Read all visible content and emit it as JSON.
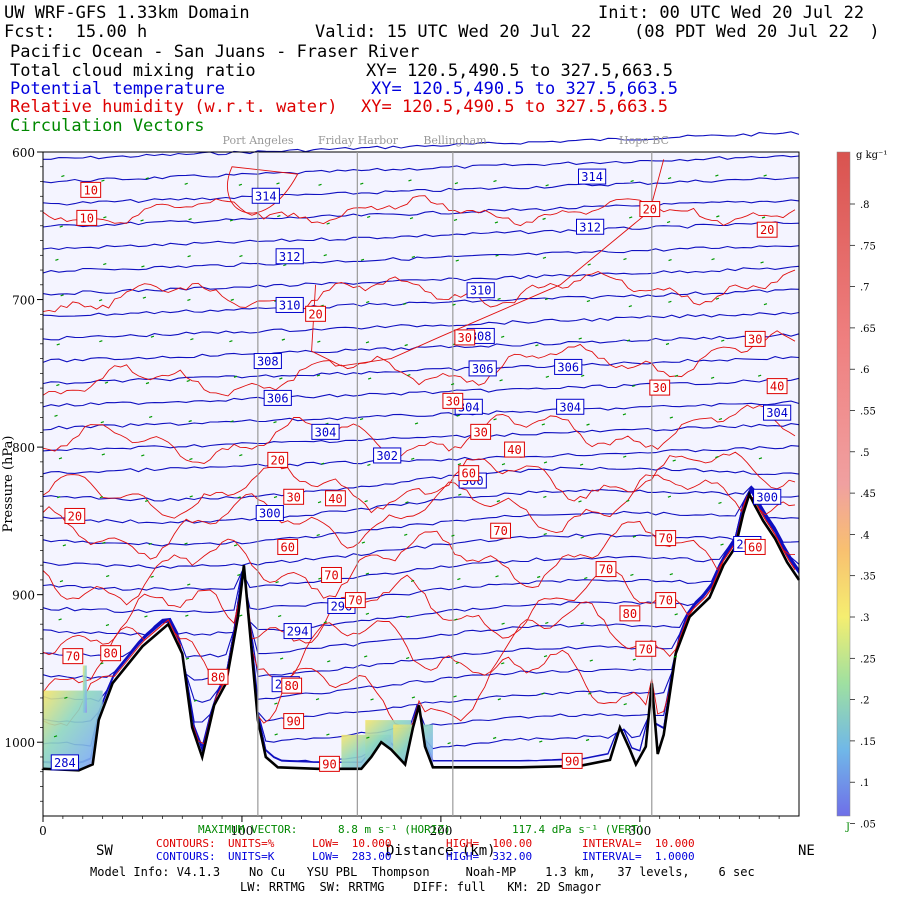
{
  "header": {
    "domain_title": "UW WRF-GFS 1.33km Domain",
    "init": "Init: 00 UTC Wed 20 Jul 22",
    "fcst": "Fcst:  15.00 h",
    "valid": "Valid: 15 UTC Wed 20 Jul 22",
    "valid_local": "(08 PDT Wed 20 Jul 22  )",
    "region": "Pacific Ocean - San Juans - Fraser River",
    "field1": "Total cloud mixing ratio",
    "field2": "Potential temperature",
    "field3": "Relative humidity (w.r.t. water)",
    "field4": "Circulation Vectors",
    "xy1": "XY= 120.5,490.5 to 327.5,663.5",
    "xy2": "XY= 120.5,490.5 to 327.5,663.5",
    "xy3": "XY= 120.5,490.5 to 327.5,663.5",
    "places": [
      "Port Angeles",
      "Friday Harbor",
      "Bellingham",
      "Hope BC"
    ],
    "field_colors": {
      "cloud": "#000000",
      "theta": "#0000dd",
      "rh": "#dd0000",
      "vectors": "#008800"
    }
  },
  "colorbar": {
    "unit": "g kg⁻¹",
    "ticks": [
      ".8",
      ".75",
      ".7",
      ".65",
      ".6",
      ".55",
      ".5",
      ".45",
      ".4",
      ".35",
      ".3",
      ".25",
      ".2",
      ".15",
      ".1",
      ".05"
    ],
    "bottom_label": "J"
  },
  "chart_data": {
    "type": "cross-section",
    "xlabel": "Distance (km)",
    "ylabel": "Pressure (hPa)",
    "xlim": [
      0,
      380
    ],
    "ylim": [
      1050,
      600
    ],
    "x_ticks": [
      "0",
      "100",
      "200",
      "300"
    ],
    "x_tick_values": [
      0,
      100,
      200,
      300
    ],
    "y_ticks": [
      "600",
      "700",
      "800",
      "900",
      "1000"
    ],
    "y_tick_values": [
      600,
      700,
      800,
      900,
      1000
    ],
    "end_labels": {
      "left": "SW",
      "right": "NE"
    },
    "vertical_lines_km": [
      108,
      158,
      206,
      306
    ],
    "theta_contours": {
      "units": "K",
      "low": 283,
      "high": 332,
      "interval": 1,
      "labels": [
        {
          "value": "314",
          "x": 112,
          "p": 630
        },
        {
          "value": "314",
          "x": 276,
          "p": 617
        },
        {
          "value": "312",
          "x": 124,
          "p": 671
        },
        {
          "value": "312",
          "x": 275,
          "p": 651
        },
        {
          "value": "310",
          "x": 124,
          "p": 704
        },
        {
          "value": "310",
          "x": 220,
          "p": 694
        },
        {
          "value": "308",
          "x": 113,
          "p": 742
        },
        {
          "value": "308",
          "x": 220,
          "p": 725
        },
        {
          "value": "306",
          "x": 118,
          "p": 767
        },
        {
          "value": "306",
          "x": 221,
          "p": 747
        },
        {
          "value": "306",
          "x": 264,
          "p": 746
        },
        {
          "value": "304",
          "x": 142,
          "p": 790
        },
        {
          "value": "304",
          "x": 214,
          "p": 773
        },
        {
          "value": "304",
          "x": 265,
          "p": 773
        },
        {
          "value": "304",
          "x": 369,
          "p": 777
        },
        {
          "value": "302",
          "x": 173,
          "p": 806
        },
        {
          "value": "300",
          "x": 114,
          "p": 845
        },
        {
          "value": "300",
          "x": 216,
          "p": 823
        },
        {
          "value": "300",
          "x": 364,
          "p": 834
        },
        {
          "value": "298",
          "x": 354,
          "p": 866
        },
        {
          "value": "296",
          "x": 150,
          "p": 908
        },
        {
          "value": "294",
          "x": 128,
          "p": 925
        },
        {
          "value": "290",
          "x": 122,
          "p": 961
        },
        {
          "value": "284",
          "x": 11,
          "p": 1014
        }
      ]
    },
    "rh_contours": {
      "units": "%",
      "low": 10,
      "high": 100,
      "interval": 10,
      "labels": [
        {
          "value": "10",
          "x": 24,
          "p": 626
        },
        {
          "value": "10",
          "x": 22,
          "p": 645
        },
        {
          "value": "20",
          "x": 305,
          "p": 639
        },
        {
          "value": "20",
          "x": 364,
          "p": 653
        },
        {
          "value": "20",
          "x": 137,
          "p": 710
        },
        {
          "value": "30",
          "x": 212,
          "p": 726
        },
        {
          "value": "30",
          "x": 358,
          "p": 727
        },
        {
          "value": "30",
          "x": 310,
          "p": 760
        },
        {
          "value": "30",
          "x": 206,
          "p": 769
        },
        {
          "value": "40",
          "x": 369,
          "p": 759
        },
        {
          "value": "30",
          "x": 220,
          "p": 790
        },
        {
          "value": "40",
          "x": 237,
          "p": 802
        },
        {
          "value": "20",
          "x": 118,
          "p": 809
        },
        {
          "value": "60",
          "x": 214,
          "p": 818
        },
        {
          "value": "30",
          "x": 126,
          "p": 834
        },
        {
          "value": "40",
          "x": 147,
          "p": 835
        },
        {
          "value": "20",
          "x": 16,
          "p": 847
        },
        {
          "value": "70",
          "x": 230,
          "p": 857
        },
        {
          "value": "70",
          "x": 313,
          "p": 862
        },
        {
          "value": "60",
          "x": 123,
          "p": 868
        },
        {
          "value": "60",
          "x": 358,
          "p": 868
        },
        {
          "value": "70",
          "x": 283,
          "p": 883
        },
        {
          "value": "70",
          "x": 145,
          "p": 887
        },
        {
          "value": "70",
          "x": 157,
          "p": 904
        },
        {
          "value": "70",
          "x": 313,
          "p": 904
        },
        {
          "value": "80",
          "x": 295,
          "p": 913
        },
        {
          "value": "70",
          "x": 303,
          "p": 937
        },
        {
          "value": "70",
          "x": 15,
          "p": 942
        },
        {
          "value": "80",
          "x": 34,
          "p": 940
        },
        {
          "value": "80",
          "x": 88,
          "p": 956
        },
        {
          "value": "80",
          "x": 125,
          "p": 962
        },
        {
          "value": "90",
          "x": 126,
          "p": 986
        },
        {
          "value": "90",
          "x": 144,
          "p": 1015
        },
        {
          "value": "90",
          "x": 266,
          "p": 1013
        }
      ]
    },
    "vectors": {
      "max_vector_label": "MAXIMUM VECTOR:",
      "max_horiz": "8.8 m s⁻¹ (HORIZ)",
      "max_vert": "117.4 dPa s⁻¹ (VERT)"
    }
  },
  "footer": {
    "rh_line": {
      "contours": "CONTOURS:",
      "units": "UNITS=%",
      "low": "LOW=  10.000",
      "high": "HIGH=  100.00",
      "interval": "INTERVAL=  10.000"
    },
    "theta_line": {
      "contours": "CONTOURS:",
      "units": "UNITS=K",
      "low": "LOW=  283.00",
      "high": "HIGH=  332.00",
      "interval": "INTERVAL=  1.0000"
    },
    "model_info": "Model Info: V4.1.3    No Cu   YSU PBL  Thompson     Noah-MP    1.3 km,   37 levels,    6 sec",
    "model_info2": "LW: RRTMG  SW: RRTMG    DIFF: full   KM: 2D Smagor"
  }
}
